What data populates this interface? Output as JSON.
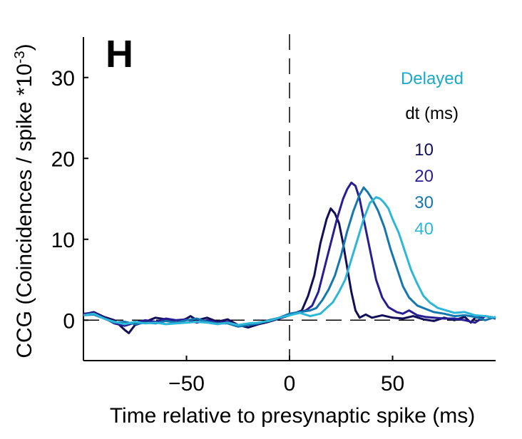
{
  "chart_data": {
    "type": "line",
    "panel_label": "H",
    "xlabel": "Time relative to presynaptic spike (ms)",
    "ylabel_main": "CCG (Coincidences / spike *10",
    "ylabel_exp": "-3",
    "ylabel_close": ")",
    "xlim": [
      -100,
      100
    ],
    "ylim": [
      -5,
      35
    ],
    "xticks": [
      -50,
      0,
      50
    ],
    "xtick_labels": [
      "−50",
      "0",
      "50"
    ],
    "yticks": [
      0,
      10,
      20,
      30
    ],
    "ytick_labels": [
      "0",
      "10",
      "20",
      "30"
    ],
    "vline_x": 0,
    "hline_y": 0,
    "legend": {
      "title": "Delayed",
      "title_color": "#1BA9C8",
      "subtitle": "dt (ms)",
      "placement": "upper-right"
    },
    "series": [
      {
        "name": "10",
        "color": "#120E57",
        "points": [
          [
            -100,
            0.7
          ],
          [
            -95,
            1.0
          ],
          [
            -90,
            0.4
          ],
          [
            -85,
            0.0
          ],
          [
            -80,
            -1.2
          ],
          [
            -78,
            -1.6
          ],
          [
            -75,
            -0.6
          ],
          [
            -70,
            -0.2
          ],
          [
            -65,
            0.3
          ],
          [
            -60,
            0.1
          ],
          [
            -55,
            -0.3
          ],
          [
            -50,
            0.2
          ],
          [
            -48,
            0.5
          ],
          [
            -45,
            0.0
          ],
          [
            -40,
            0.3
          ],
          [
            -35,
            -0.2
          ],
          [
            -30,
            0.1
          ],
          [
            -25,
            -0.6
          ],
          [
            -20,
            -0.9
          ],
          [
            -15,
            -0.5
          ],
          [
            -10,
            -0.2
          ],
          [
            -5,
            0.2
          ],
          [
            0,
            0.6
          ],
          [
            3,
            0.9
          ],
          [
            6,
            1.2
          ],
          [
            9,
            3.0
          ],
          [
            12,
            5.5
          ],
          [
            15,
            9.5
          ],
          [
            18,
            12.5
          ],
          [
            20,
            13.8
          ],
          [
            22,
            13.2
          ],
          [
            24,
            12.0
          ],
          [
            26,
            9.5
          ],
          [
            28,
            6.5
          ],
          [
            30,
            3.5
          ],
          [
            32,
            1.2
          ],
          [
            34,
            0.3
          ],
          [
            37,
            0.7
          ],
          [
            40,
            0.3
          ],
          [
            45,
            0.6
          ],
          [
            50,
            0.3
          ],
          [
            55,
            0.2
          ],
          [
            60,
            0.5
          ],
          [
            65,
            0.1
          ],
          [
            70,
            -0.1
          ],
          [
            75,
            0.3
          ],
          [
            80,
            0.0
          ],
          [
            85,
            0.4
          ],
          [
            88,
            -0.3
          ],
          [
            90,
            0.3
          ],
          [
            95,
            0.5
          ],
          [
            100,
            0.2
          ]
        ]
      },
      {
        "name": "20",
        "color": "#281E94",
        "points": [
          [
            -100,
            0.8
          ],
          [
            -95,
            0.9
          ],
          [
            -90,
            0.3
          ],
          [
            -85,
            -0.4
          ],
          [
            -80,
            -0.7
          ],
          [
            -75,
            -0.3
          ],
          [
            -70,
            0.0
          ],
          [
            -65,
            -0.2
          ],
          [
            -60,
            0.2
          ],
          [
            -55,
            0.0
          ],
          [
            -50,
            0.1
          ],
          [
            -45,
            -0.3
          ],
          [
            -40,
            0.0
          ],
          [
            -35,
            -0.3
          ],
          [
            -30,
            -0.2
          ],
          [
            -25,
            -0.7
          ],
          [
            -20,
            -0.5
          ],
          [
            -15,
            -0.3
          ],
          [
            -10,
            -0.1
          ],
          [
            -5,
            0.2
          ],
          [
            0,
            0.8
          ],
          [
            5,
            1.0
          ],
          [
            8,
            1.2
          ],
          [
            11,
            1.8
          ],
          [
            14,
            3.5
          ],
          [
            17,
            6.5
          ],
          [
            20,
            9.5
          ],
          [
            23,
            12.5
          ],
          [
            26,
            15.0
          ],
          [
            28,
            16.2
          ],
          [
            30,
            17.0
          ],
          [
            32,
            16.6
          ],
          [
            34,
            15.0
          ],
          [
            36,
            12.5
          ],
          [
            38,
            10.0
          ],
          [
            40,
            7.5
          ],
          [
            42,
            5.0
          ],
          [
            45,
            2.8
          ],
          [
            48,
            1.6
          ],
          [
            52,
            1.0
          ],
          [
            55,
            0.8
          ],
          [
            58,
            1.2
          ],
          [
            62,
            0.6
          ],
          [
            66,
            0.4
          ],
          [
            70,
            0.3
          ],
          [
            75,
            0.2
          ],
          [
            80,
            0.2
          ],
          [
            85,
            0.0
          ],
          [
            90,
            -0.3
          ],
          [
            95,
            0.5
          ],
          [
            100,
            0.3
          ]
        ]
      },
      {
        "name": "30",
        "color": "#1477B0",
        "points": [
          [
            -100,
            0.6
          ],
          [
            -95,
            0.7
          ],
          [
            -90,
            0.2
          ],
          [
            -85,
            -0.3
          ],
          [
            -80,
            -0.2
          ],
          [
            -75,
            -0.5
          ],
          [
            -70,
            -0.3
          ],
          [
            -65,
            -0.4
          ],
          [
            -60,
            -0.1
          ],
          [
            -55,
            -0.3
          ],
          [
            -50,
            0.0
          ],
          [
            -45,
            0.2
          ],
          [
            -40,
            -0.2
          ],
          [
            -35,
            -0.4
          ],
          [
            -30,
            -0.4
          ],
          [
            -25,
            -0.8
          ],
          [
            -20,
            -0.6
          ],
          [
            -15,
            -0.4
          ],
          [
            -10,
            0.0
          ],
          [
            -5,
            0.3
          ],
          [
            0,
            0.8
          ],
          [
            5,
            1.0
          ],
          [
            10,
            1.2
          ],
          [
            13,
            1.5
          ],
          [
            16,
            2.5
          ],
          [
            19,
            3.8
          ],
          [
            22,
            5.5
          ],
          [
            25,
            8.0
          ],
          [
            28,
            11.0
          ],
          [
            31,
            13.5
          ],
          [
            34,
            15.5
          ],
          [
            36,
            16.4
          ],
          [
            38,
            15.8
          ],
          [
            40,
            15.0
          ],
          [
            43,
            13.5
          ],
          [
            46,
            11.5
          ],
          [
            49,
            8.8
          ],
          [
            52,
            6.5
          ],
          [
            55,
            4.2
          ],
          [
            58,
            2.8
          ],
          [
            62,
            1.8
          ],
          [
            66,
            1.4
          ],
          [
            70,
            1.0
          ],
          [
            75,
            0.8
          ],
          [
            80,
            0.5
          ],
          [
            85,
            0.6
          ],
          [
            90,
            0.4
          ],
          [
            95,
            0.0
          ],
          [
            100,
            0.4
          ]
        ]
      },
      {
        "name": "40",
        "color": "#2CB7D8",
        "points": [
          [
            -100,
            0.6
          ],
          [
            -95,
            0.8
          ],
          [
            -90,
            0.2
          ],
          [
            -85,
            -0.2
          ],
          [
            -80,
            -0.5
          ],
          [
            -75,
            -0.2
          ],
          [
            -70,
            -0.4
          ],
          [
            -65,
            -0.3
          ],
          [
            -60,
            -0.5
          ],
          [
            -55,
            -0.4
          ],
          [
            -50,
            -0.3
          ],
          [
            -45,
            -0.2
          ],
          [
            -40,
            -0.3
          ],
          [
            -35,
            -0.5
          ],
          [
            -30,
            -0.3
          ],
          [
            -25,
            -0.6
          ],
          [
            -20,
            -0.4
          ],
          [
            -15,
            -0.3
          ],
          [
            -10,
            -0.1
          ],
          [
            -5,
            0.3
          ],
          [
            0,
            0.6
          ],
          [
            5,
            0.9
          ],
          [
            10,
            0.5
          ],
          [
            15,
            0.8
          ],
          [
            18,
            1.5
          ],
          [
            21,
            2.2
          ],
          [
            24,
            3.5
          ],
          [
            27,
            5.0
          ],
          [
            30,
            7.5
          ],
          [
            33,
            10.0
          ],
          [
            36,
            12.5
          ],
          [
            39,
            14.5
          ],
          [
            42,
            15.2
          ],
          [
            44,
            15.0
          ],
          [
            46,
            14.5
          ],
          [
            48,
            13.8
          ],
          [
            50,
            12.5
          ],
          [
            53,
            10.8
          ],
          [
            56,
            8.5
          ],
          [
            59,
            6.2
          ],
          [
            62,
            4.5
          ],
          [
            65,
            3.0
          ],
          [
            68,
            2.2
          ],
          [
            72,
            1.5
          ],
          [
            76,
            1.2
          ],
          [
            80,
            0.9
          ],
          [
            85,
            1.0
          ],
          [
            90,
            0.6
          ],
          [
            95,
            0.5
          ],
          [
            100,
            0.3
          ]
        ]
      }
    ]
  }
}
